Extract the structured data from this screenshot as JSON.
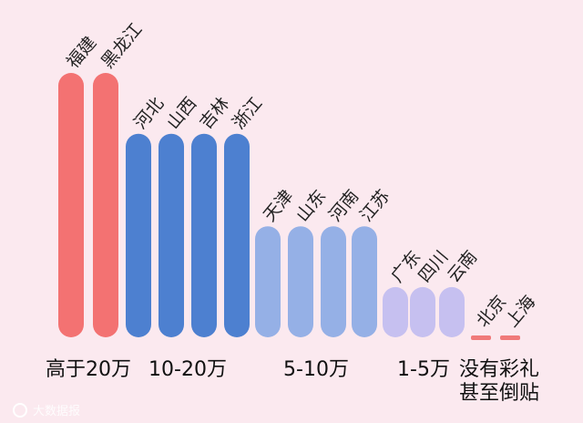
{
  "chart_data": {
    "type": "bar",
    "title": "",
    "xlabel": "",
    "ylabel": "",
    "categories": [
      "福建",
      "黑龙江",
      "河北",
      "山西",
      "吉林",
      "浙江",
      "天津",
      "山东",
      "河南",
      "江苏",
      "广东",
      "四川",
      "云南",
      "北京",
      "上海"
    ],
    "groups": [
      {
        "label": "高于20万",
        "categories": [
          "福建",
          "黑龙江"
        ],
        "color": "#f37272"
      },
      {
        "label": "10-20万",
        "categories": [
          "河北",
          "山西",
          "吉林",
          "浙江"
        ],
        "color": "#4d80d0"
      },
      {
        "label": "5-10万",
        "categories": [
          "天津",
          "山东",
          "河南",
          "江苏"
        ],
        "color": "#95b0e6"
      },
      {
        "label": "1-5万",
        "categories": [
          "广东",
          "四川",
          "云南"
        ],
        "color": "#c6c0f0"
      },
      {
        "label_lines": [
          "没有彩礼",
          "甚至倒贴"
        ],
        "categories": [
          "北京",
          "上海"
        ],
        "color": "#f07a7a"
      }
    ],
    "values": [
      100,
      100,
      77,
      77,
      77,
      77,
      42,
      42,
      42,
      42,
      19,
      19,
      19,
      0,
      0
    ],
    "value_note": "relative bar heights (tallest = 100); chart prints no numeric axis",
    "legend": "none",
    "grid": false
  },
  "watermark": {
    "text": "大数据报"
  }
}
